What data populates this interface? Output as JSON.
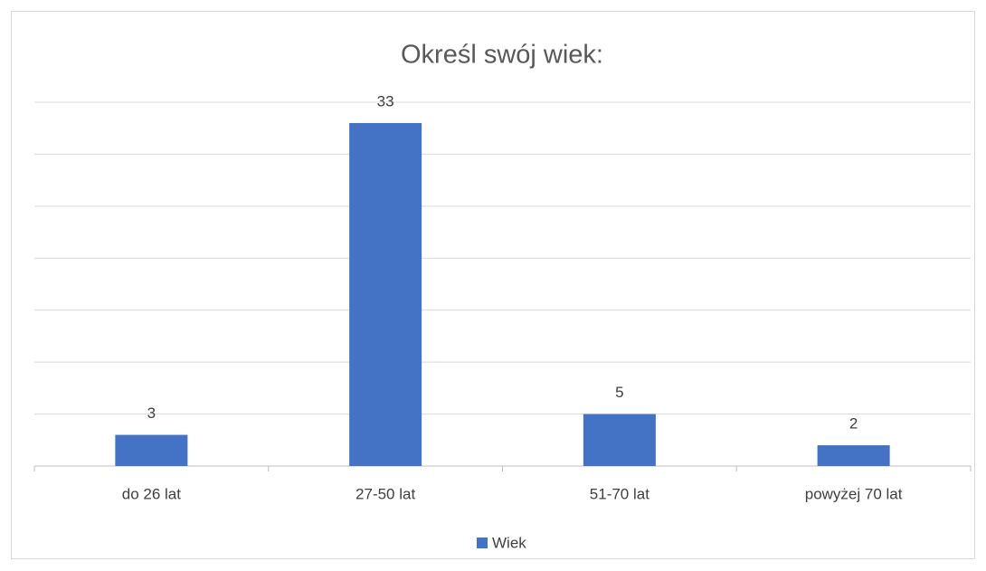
{
  "chart_data": {
    "type": "bar",
    "title": "Określ swój wiek:",
    "categories": [
      "do 26 lat",
      "27-50 lat",
      "51-70 lat",
      "powyżej 70 lat"
    ],
    "series": [
      {
        "name": "Wiek",
        "color": "#4472c4",
        "values": [
          3,
          33,
          5,
          2
        ]
      }
    ],
    "ylim": [
      0,
      35
    ],
    "yticks": [
      0,
      5,
      10,
      15,
      20,
      25,
      30,
      35
    ],
    "grid": true,
    "legend": "bottom"
  }
}
